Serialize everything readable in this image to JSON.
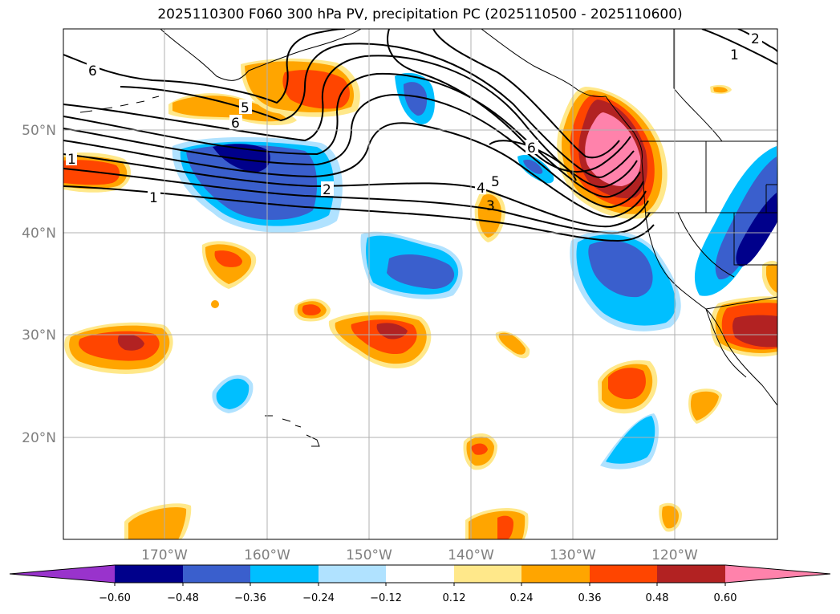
{
  "title": "2025110300 F060 300 hPa PV, precipitation PC (2025110500 - 2025110600)",
  "axes": {
    "lat_labels": [
      "50°N",
      "40°N",
      "30°N",
      "20°N"
    ],
    "lon_labels": [
      "170°W",
      "160°W",
      "150°W",
      "140°W",
      "130°W",
      "120°W"
    ]
  },
  "colorbar": {
    "tick_labels": [
      "−0.60",
      "−0.48",
      "−0.36",
      "−0.24",
      "−0.12",
      "0.12",
      "0.24",
      "0.36",
      "0.48",
      "0.60"
    ],
    "colors": [
      "#9933cc",
      "#00008b",
      "#3a5fcd",
      "#00bfff",
      "#b0e2ff",
      "#ffffff",
      "#ffe88a",
      "#ffa500",
      "#ff4500",
      "#b22222",
      "#ff82ab"
    ]
  },
  "contour_labels": [
    "6",
    "5",
    "6",
    "2",
    "1",
    "1",
    "6",
    "4",
    "5",
    "3",
    "2",
    "1"
  ],
  "colors": {
    "land_line": "#000000",
    "grid": "#b0b0b0",
    "pv_contour": "#000000"
  }
}
